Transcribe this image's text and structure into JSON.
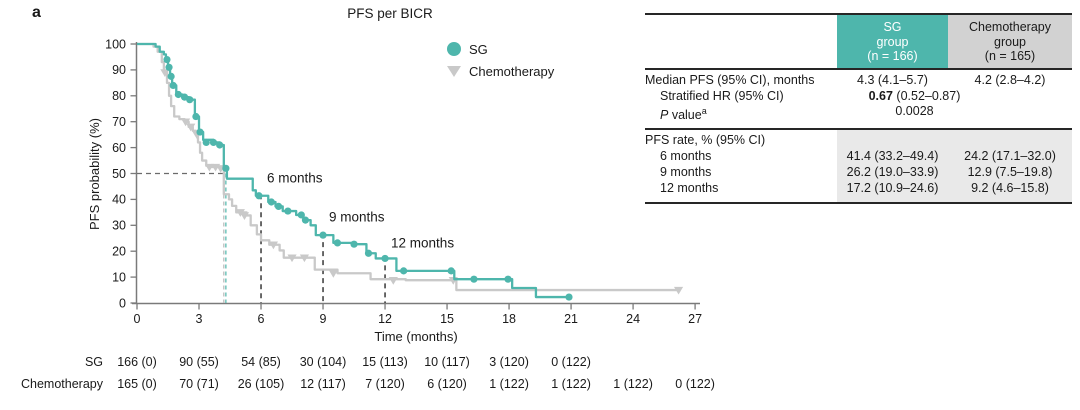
{
  "figure": {
    "panel_label": "a"
  },
  "legend": {
    "items": [
      {
        "label": "SG",
        "marker": "circle",
        "color": "#4eb6ac"
      },
      {
        "label": "Chemotherapy",
        "marker": "triangle-down",
        "color": "#c9c9c9"
      }
    ]
  },
  "chart_data": {
    "type": "line",
    "subtype": "kaplan-meier-step",
    "title": "PFS per BICR",
    "xlabel": "Time (months)",
    "ylabel": "PFS probability (%)",
    "xlim": [
      0,
      27
    ],
    "ylim": [
      0,
      100
    ],
    "grid": false,
    "legend_position": "upper right",
    "x_ticks": [
      0,
      3,
      6,
      9,
      12,
      15,
      18,
      21,
      24,
      27
    ],
    "y_ticks": [
      0,
      10,
      20,
      30,
      40,
      50,
      60,
      70,
      80,
      90,
      100
    ],
    "series": [
      {
        "name": "SG",
        "color": "#4eb6ac",
        "marker": "circle",
        "end_t": 20.95,
        "points": [
          [
            0,
            100
          ],
          [
            0.9,
            99
          ],
          [
            1.1,
            97
          ],
          [
            1.3,
            96
          ],
          [
            1.4,
            94
          ],
          [
            1.5,
            91
          ],
          [
            1.6,
            87.5
          ],
          [
            1.7,
            84
          ],
          [
            1.9,
            80.5
          ],
          [
            2.2,
            79.5
          ],
          [
            2.5,
            78.5
          ],
          [
            2.8,
            72
          ],
          [
            3.0,
            66
          ],
          [
            3.2,
            63
          ],
          [
            3.7,
            62
          ],
          [
            4.0,
            61
          ],
          [
            4.2,
            52
          ],
          [
            4.35,
            48
          ],
          [
            5.6,
            43.5
          ],
          [
            5.75,
            41.4
          ],
          [
            6.35,
            39
          ],
          [
            6.7,
            37.3
          ],
          [
            7.05,
            35.5
          ],
          [
            7.7,
            34
          ],
          [
            8.05,
            32
          ],
          [
            8.4,
            30
          ],
          [
            8.65,
            26.2
          ],
          [
            9.5,
            23.2
          ],
          [
            10.4,
            22.7
          ],
          [
            11.1,
            19.2
          ],
          [
            11.55,
            17.2
          ],
          [
            12.55,
            12.4
          ],
          [
            15.35,
            9.2
          ],
          [
            18.15,
            5.8
          ],
          [
            19.3,
            2.3
          ]
        ],
        "censor_marks": [
          [
            1.45,
            94
          ],
          [
            1.55,
            91
          ],
          [
            1.65,
            87.5
          ],
          [
            1.75,
            84
          ],
          [
            2.0,
            80.5
          ],
          [
            2.3,
            79.5
          ],
          [
            2.55,
            78.5
          ],
          [
            2.85,
            72
          ],
          [
            3.05,
            66
          ],
          [
            3.35,
            62
          ],
          [
            3.7,
            62
          ],
          [
            4.0,
            61
          ],
          [
            4.3,
            52
          ],
          [
            5.9,
            41.4
          ],
          [
            6.5,
            39
          ],
          [
            6.85,
            37.3
          ],
          [
            7.3,
            35.5
          ],
          [
            7.95,
            34
          ],
          [
            8.15,
            32
          ],
          [
            9.0,
            26.2
          ],
          [
            9.7,
            23.2
          ],
          [
            10.5,
            22.7
          ],
          [
            11.2,
            19.2
          ],
          [
            12.0,
            17.2
          ],
          [
            12.9,
            12.4
          ],
          [
            15.2,
            12.4
          ],
          [
            16.3,
            9.2
          ],
          [
            17.95,
            9.2
          ],
          [
            20.9,
            2.3
          ]
        ]
      },
      {
        "name": "Chemotherapy",
        "color": "#c9c9c9",
        "marker": "triangle-down",
        "end_t": 26.3,
        "points": [
          [
            0,
            100
          ],
          [
            0.8,
            99
          ],
          [
            1.0,
            97
          ],
          [
            1.2,
            93
          ],
          [
            1.3,
            89
          ],
          [
            1.45,
            85
          ],
          [
            1.55,
            80
          ],
          [
            1.65,
            76
          ],
          [
            1.8,
            72
          ],
          [
            2.05,
            71
          ],
          [
            2.3,
            70
          ],
          [
            2.5,
            68
          ],
          [
            2.7,
            66.5
          ],
          [
            2.85,
            65
          ],
          [
            2.95,
            62
          ],
          [
            3.05,
            58
          ],
          [
            3.15,
            55
          ],
          [
            3.35,
            53
          ],
          [
            3.6,
            52.5
          ],
          [
            4.15,
            52
          ],
          [
            4.2,
            42
          ],
          [
            4.45,
            40
          ],
          [
            4.6,
            37.5
          ],
          [
            4.8,
            35
          ],
          [
            5.3,
            33.8
          ],
          [
            5.5,
            30
          ],
          [
            5.8,
            26.5
          ],
          [
            6.0,
            24.2
          ],
          [
            6.4,
            22.5
          ],
          [
            6.9,
            20.3
          ],
          [
            7.1,
            17.5
          ],
          [
            8.6,
            12.9
          ],
          [
            9.7,
            11.5
          ],
          [
            11.3,
            9.2
          ],
          [
            13.0,
            8.8
          ],
          [
            15.45,
            5.0
          ]
        ],
        "censor_marks": [
          [
            1.35,
            89
          ],
          [
            2.35,
            70
          ],
          [
            2.6,
            68
          ],
          [
            2.9,
            65
          ],
          [
            3.5,
            52.5
          ],
          [
            3.8,
            52.5
          ],
          [
            4.05,
            52
          ],
          [
            5.0,
            35
          ],
          [
            5.2,
            33.8
          ],
          [
            6.6,
            22.5
          ],
          [
            7.5,
            17.5
          ],
          [
            8.1,
            17.5
          ],
          [
            9.5,
            11.5
          ],
          [
            12.4,
            8.8
          ],
          [
            15.3,
            8.8
          ],
          [
            26.2,
            5.0
          ]
        ]
      }
    ],
    "median_lines": {
      "y_pct": 50,
      "sg_median_months": 4.3,
      "chemo_median_months": 4.2
    },
    "time_annotations": [
      {
        "label": "6 months",
        "t": 6,
        "line_top_pct": 42,
        "label_pct": 46.5
      },
      {
        "label": "9 months",
        "t": 9,
        "line_top_pct": 27,
        "label_pct": 31.5
      },
      {
        "label": "12 months",
        "t": 12,
        "line_top_pct": 18,
        "label_pct": 21.5
      }
    ],
    "at_risk": {
      "rows": [
        {
          "label": "SG",
          "counts": [
            "166 (0)",
            "90 (55)",
            "54 (85)",
            "30 (104)",
            "15 (113)",
            "10 (117)",
            "3 (120)",
            "0 (122)"
          ]
        },
        {
          "label": "Chemotherapy",
          "counts": [
            "165 (0)",
            "70 (71)",
            "26 (105)",
            "12 (117)",
            "7 (120)",
            "6 (120)",
            "1 (122)",
            "1 (122)",
            "1 (122)",
            "0 (122)"
          ]
        }
      ]
    }
  },
  "stats_table": {
    "col_headers": [
      {
        "lines": [
          "SG",
          "group",
          "(n = 166)"
        ],
        "bg": "#4eb6ac",
        "text_color": "#ffffff"
      },
      {
        "lines": [
          "Chemotherapy",
          "group",
          "(n = 165)"
        ],
        "bg": "#d2d2d2",
        "text_color": "#1a1a1a"
      }
    ],
    "rows": {
      "median": {
        "label": "Median PFS (95% CI), months",
        "sg": "4.3 (4.1–5.7)",
        "chemo": "4.2 (2.8–4.2)"
      },
      "hr": {
        "label": "Stratified HR (95% CI)",
        "bold": "0.67",
        "ci": " (0.52–0.87)"
      },
      "pvalue": {
        "label_italic": "P",
        "label_rest": " value",
        "sup": "a",
        "value": "0.0028"
      },
      "rate_header": "PFS rate, % (95% CI)",
      "rates": [
        {
          "label": "6 months",
          "sg": "41.4 (33.2–49.4)",
          "chemo": "24.2 (17.1–32.0)"
        },
        {
          "label": "9 months",
          "sg": "26.2 (19.0–33.9)",
          "chemo": "12.9 (7.5–19.8)"
        },
        {
          "label": "12 months",
          "sg": "17.2 (10.9–24.6)",
          "chemo": "9.2 (4.6–15.8)"
        }
      ]
    }
  }
}
